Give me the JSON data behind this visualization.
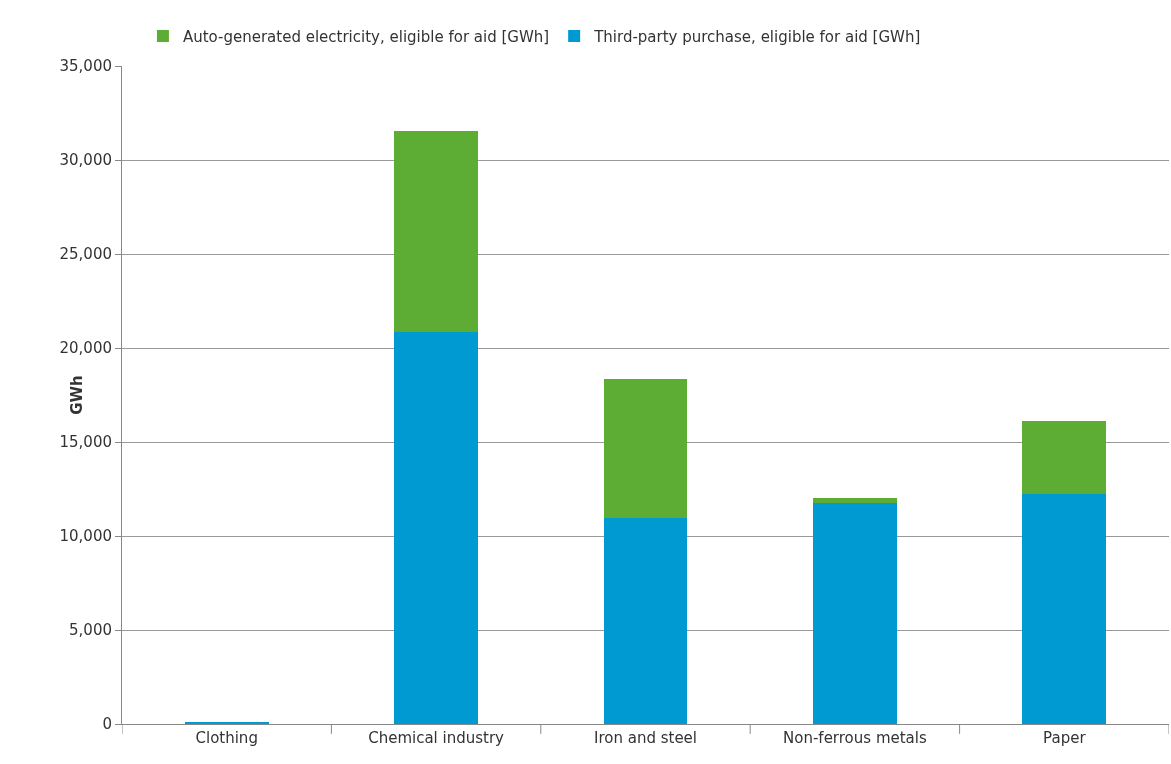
{
  "chart_data": {
    "type": "bar",
    "stacked": true,
    "ylabel": "GWh",
    "categories": [
      "Clothing",
      "Chemical industry",
      "Iron and steel",
      "Non-ferrous metals",
      "Paper"
    ],
    "series": [
      {
        "name": "Third-party purchase, eligible for aid [GWh]",
        "color": "#009ad3",
        "values": [
          100,
          20850,
          10940,
          11730,
          12220
        ]
      },
      {
        "name": "Auto-generated electricity, eligible for aid [GWh]",
        "color": "#5dad35",
        "values": [
          0,
          10670,
          7420,
          290,
          3910
        ]
      }
    ],
    "ylim": [
      0,
      35000
    ],
    "yticks": [
      {
        "value": 0,
        "label": "0"
      },
      {
        "value": 5000,
        "label": "5,000"
      },
      {
        "value": 10000,
        "label": "10,000"
      },
      {
        "value": 15000,
        "label": "15,000"
      },
      {
        "value": 20000,
        "label": "20,000"
      },
      {
        "value": 25000,
        "label": "25,000"
      },
      {
        "value": 30000,
        "label": "30,000"
      },
      {
        "value": 35000,
        "label": "35,000"
      }
    ],
    "grid": "y",
    "legend": "top"
  }
}
